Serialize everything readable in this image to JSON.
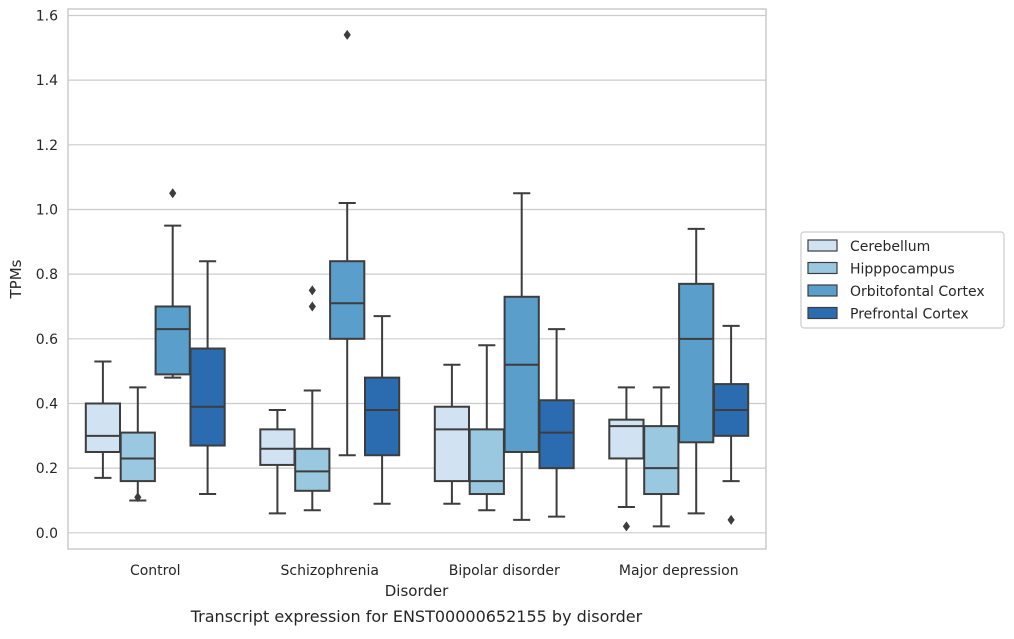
{
  "chart_data": {
    "type": "box",
    "title": "",
    "caption": "Transcript expression for ENST00000652155 by disorder",
    "xlabel": "Disorder",
    "ylabel": "TPMs",
    "ylim": [
      -0.05,
      1.62
    ],
    "yticks": [
      0.0,
      0.2,
      0.4,
      0.6,
      0.8,
      1.0,
      1.2,
      1.4,
      1.6
    ],
    "ytick_labels": [
      "0.0",
      "0.2",
      "0.4",
      "0.6",
      "0.8",
      "1.0",
      "1.2",
      "1.4",
      "1.6"
    ],
    "grid": true,
    "legend_position": "right",
    "categories": [
      "Control",
      "Schizophrenia",
      "Bipolar disorder",
      "Major depression"
    ],
    "series": [
      {
        "name": "Cerebellum",
        "color": "#d1e2f2",
        "boxes": [
          {
            "whisker_low": 0.17,
            "q1": 0.25,
            "median": 0.3,
            "q3": 0.4,
            "whisker_high": 0.53,
            "outliers": []
          },
          {
            "whisker_low": 0.06,
            "q1": 0.21,
            "median": 0.26,
            "q3": 0.32,
            "whisker_high": 0.38,
            "outliers": []
          },
          {
            "whisker_low": 0.09,
            "q1": 0.16,
            "median": 0.32,
            "q3": 0.39,
            "whisker_high": 0.52,
            "outliers": []
          },
          {
            "whisker_low": 0.08,
            "q1": 0.23,
            "median": 0.33,
            "q3": 0.35,
            "whisker_high": 0.45,
            "outliers": [
              0.02
            ]
          }
        ]
      },
      {
        "name": "Hipppocampus",
        "color": "#9ac8e0",
        "boxes": [
          {
            "whisker_low": 0.1,
            "q1": 0.16,
            "median": 0.23,
            "q3": 0.31,
            "whisker_high": 0.45,
            "outliers": [
              0.11
            ]
          },
          {
            "whisker_low": 0.07,
            "q1": 0.13,
            "median": 0.19,
            "q3": 0.26,
            "whisker_high": 0.44,
            "outliers": [
              0.7,
              0.75
            ]
          },
          {
            "whisker_low": 0.07,
            "q1": 0.12,
            "median": 0.16,
            "q3": 0.32,
            "whisker_high": 0.58,
            "outliers": []
          },
          {
            "whisker_low": 0.02,
            "q1": 0.12,
            "median": 0.2,
            "q3": 0.33,
            "whisker_high": 0.45,
            "outliers": []
          }
        ]
      },
      {
        "name": "Orbitofontal Cortex",
        "color": "#5a9ecb",
        "boxes": [
          {
            "whisker_low": 0.48,
            "q1": 0.49,
            "median": 0.63,
            "q3": 0.7,
            "whisker_high": 0.95,
            "outliers": [
              1.05
            ]
          },
          {
            "whisker_low": 0.24,
            "q1": 0.6,
            "median": 0.71,
            "q3": 0.84,
            "whisker_high": 1.02,
            "outliers": [
              1.54
            ]
          },
          {
            "whisker_low": 0.04,
            "q1": 0.25,
            "median": 0.52,
            "q3": 0.73,
            "whisker_high": 1.05,
            "outliers": []
          },
          {
            "whisker_low": 0.06,
            "q1": 0.28,
            "median": 0.6,
            "q3": 0.77,
            "whisker_high": 0.94,
            "outliers": []
          }
        ]
      },
      {
        "name": "Prefrontal Cortex",
        "color": "#2b6cb0",
        "boxes": [
          {
            "whisker_low": 0.12,
            "q1": 0.27,
            "median": 0.39,
            "q3": 0.57,
            "whisker_high": 0.84,
            "outliers": []
          },
          {
            "whisker_low": 0.09,
            "q1": 0.24,
            "median": 0.38,
            "q3": 0.48,
            "whisker_high": 0.67,
            "outliers": []
          },
          {
            "whisker_low": 0.05,
            "q1": 0.2,
            "median": 0.31,
            "q3": 0.41,
            "whisker_high": 0.63,
            "outliers": []
          },
          {
            "whisker_low": 0.16,
            "q1": 0.3,
            "median": 0.38,
            "q3": 0.46,
            "whisker_high": 0.64,
            "outliers": [
              0.04
            ]
          }
        ]
      }
    ]
  }
}
